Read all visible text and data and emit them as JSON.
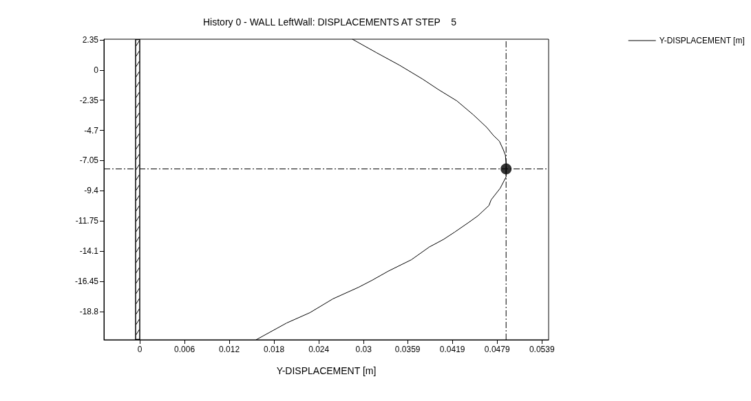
{
  "chart_data": {
    "type": "line",
    "title": "History 0 - WALL LeftWall: DISPLACEMENTS AT STEP    5",
    "xlabel": "Y-DISPLACEMENT [m]",
    "xlim": [
      -0.0048,
      0.0548
    ],
    "xticks": [
      0,
      0.006,
      0.012,
      0.018,
      0.024,
      0.03,
      0.0359,
      0.0419,
      0.0479,
      0.0539
    ],
    "ylim": [
      -21,
      2.4
    ],
    "yticks": [
      2.35,
      0,
      -2.35,
      -4.7,
      -7.05,
      -9.4,
      -11.75,
      -14.1,
      -16.45,
      -18.8
    ],
    "grid": false,
    "legend": "top right",
    "marker": "none",
    "line_style": "solid",
    "series": [
      {
        "name": "Y-DISPLACEMENT [m]",
        "color": "#000000",
        "x": [
          0.0285,
          0.0317,
          0.0348,
          0.0379,
          0.04,
          0.0425,
          0.0447,
          0.0465,
          0.0474,
          0.0482,
          0.0487,
          0.049,
          0.0491,
          0.0491,
          0.0491,
          0.0483,
          0.0471,
          0.0468,
          0.0453,
          0.044,
          0.0422,
          0.0407,
          0.0388,
          0.0364,
          0.0333,
          0.0311,
          0.0293,
          0.0259,
          0.0228,
          0.0197,
          0.0166,
          0.0156
        ],
        "values": [
          2.4,
          1.36,
          0.38,
          -0.7,
          -1.51,
          -2.4,
          -3.48,
          -4.46,
          -5.09,
          -5.54,
          -6.17,
          -6.61,
          -7.24,
          -7.7,
          -8.32,
          -9.21,
          -10.1,
          -10.55,
          -11.36,
          -11.9,
          -12.62,
          -13.19,
          -13.78,
          -14.77,
          -15.66,
          -16.38,
          -16.92,
          -17.81,
          -18.89,
          -19.69,
          -20.68,
          -21
        ]
      },
      {
        "type": "scatter",
        "marker": "circle",
        "color": "#000000",
        "x": [
          0.0491
        ],
        "values": [
          -7.7
        ]
      }
    ],
    "ref_lines": [
      {
        "axis": "x",
        "value": 0.0491,
        "color": "#000000",
        "line_style": "dashed"
      },
      {
        "axis": "y",
        "value": -7.7,
        "color": "#000000",
        "line_style": "dashed"
      }
    ]
  }
}
